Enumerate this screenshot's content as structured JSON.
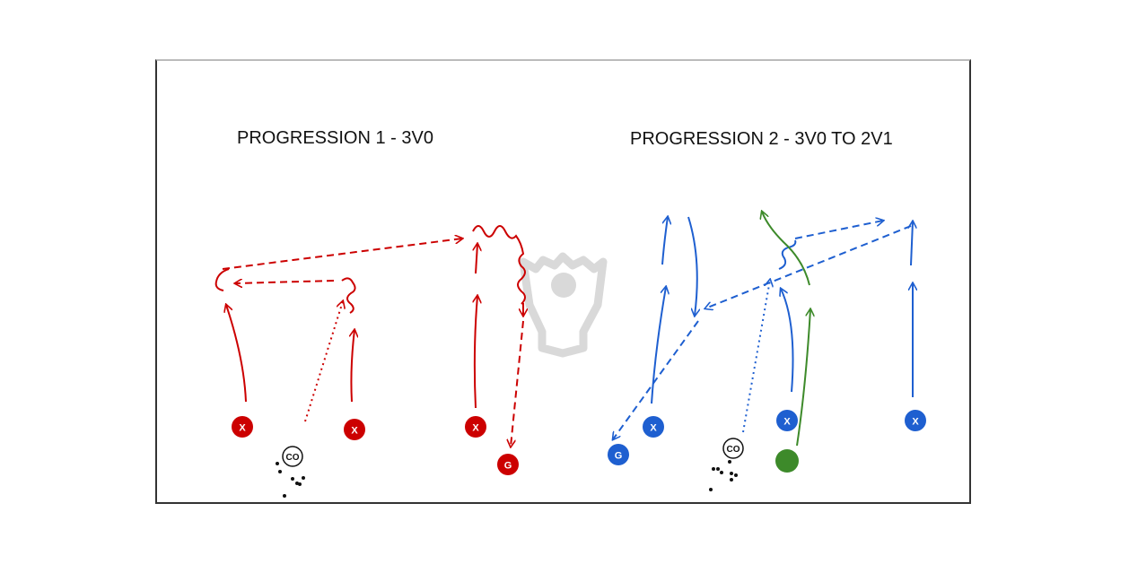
{
  "colors": {
    "red": "#cc0000",
    "blue": "#1e5fd0",
    "green": "#3d8a2a",
    "watermark": "#d5d5d5",
    "ink": "#111111"
  },
  "progression1": {
    "title": "PROGRESSION 1 - 3V0",
    "players": {
      "attacker": "X",
      "goalie": "G",
      "coach": "CO"
    }
  },
  "progression2": {
    "title": "PROGRESSION 2 - 3V0 TO 2V1",
    "players": {
      "attacker": "X",
      "goalie": "G",
      "coach": "CO"
    }
  },
  "watermark": {
    "icon": "lacrosse-head-logo-icon"
  }
}
